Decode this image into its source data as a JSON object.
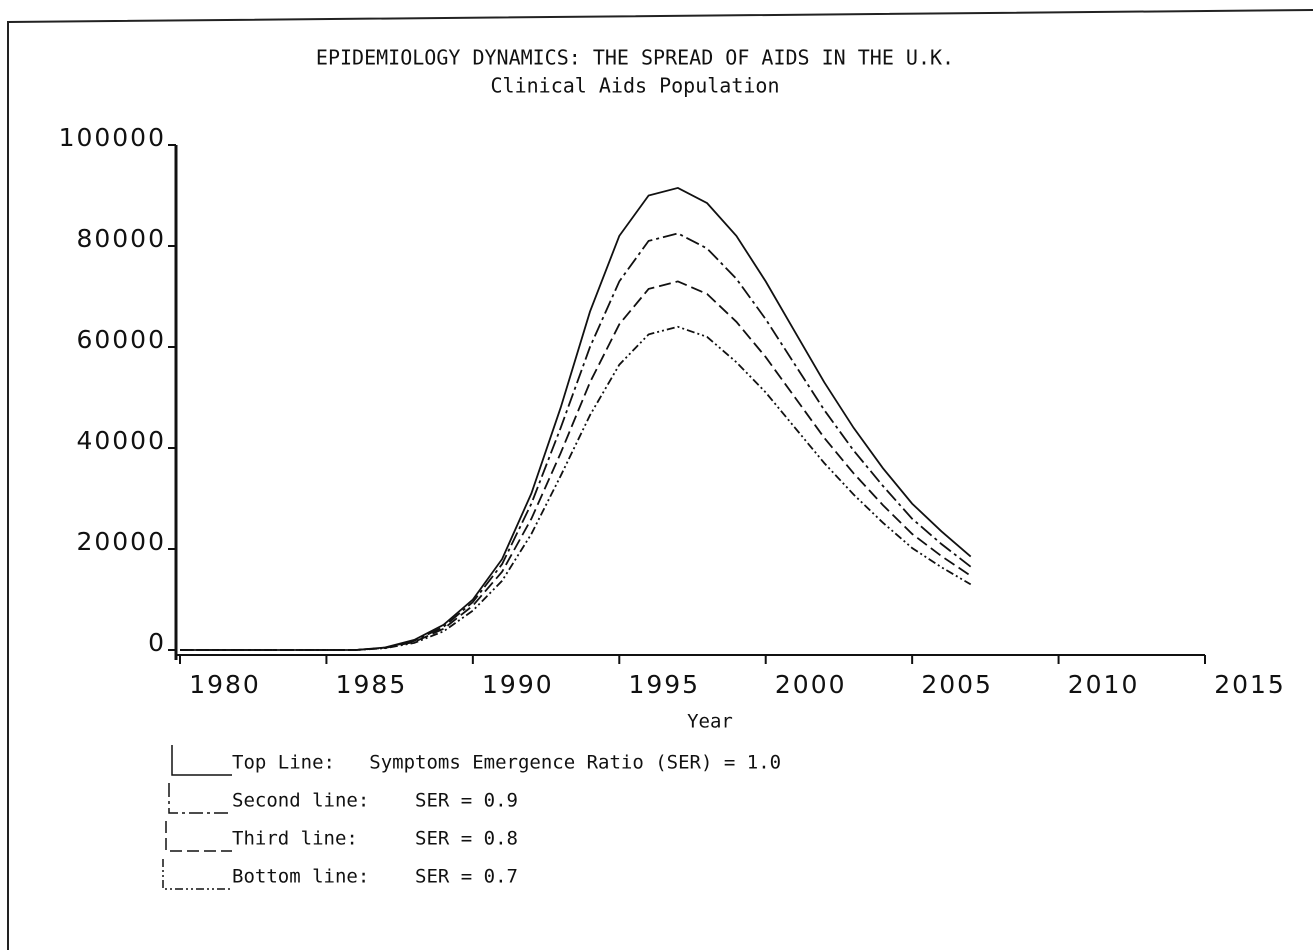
{
  "chart_data": {
    "type": "line",
    "title": "EPIDEMIOLOGY DYNAMICS: THE SPREAD OF AIDS IN THE U.K.",
    "subtitle": "Clinical Aids Population",
    "x_label": "Year",
    "x": [
      1980,
      1981,
      1982,
      1983,
      1984,
      1985,
      1986,
      1987,
      1988,
      1989,
      1990,
      1991,
      1992,
      1993,
      1994,
      1995,
      1996,
      1997,
      1998,
      1999,
      2000,
      2001,
      2002,
      2003,
      2004,
      2005,
      2006,
      2007
    ],
    "xlim": [
      1980,
      2015
    ],
    "xticks": [
      1980,
      1985,
      1990,
      1995,
      2000,
      2005,
      2010,
      2015
    ],
    "ylim": [
      0,
      100000
    ],
    "yticks": [
      0,
      20000,
      40000,
      60000,
      80000,
      100000
    ],
    "series": [
      {
        "name": "Top Line:   Symptoms Emergence Ratio (SER) = 1.0",
        "color": "#111111",
        "dash": "none",
        "values": [
          0,
          0,
          0,
          0,
          0,
          0,
          0,
          500,
          2000,
          5000,
          10000,
          18000,
          31000,
          48000,
          67000,
          82000,
          90000,
          91500,
          88500,
          82000,
          73000,
          63000,
          53000,
          44000,
          36000,
          29000,
          23500,
          18500
        ]
      },
      {
        "name": "Second line:    SER = 0.9",
        "color": "#111111",
        "dash": "14 4 3 4",
        "values": [
          0,
          0,
          0,
          0,
          0,
          0,
          0,
          450,
          1800,
          4600,
          9500,
          17000,
          29000,
          44000,
          60000,
          73000,
          81000,
          82500,
          79500,
          73500,
          65500,
          56500,
          47500,
          39500,
          32500,
          26000,
          21000,
          16500
        ]
      },
      {
        "name": "Third line:     SER = 0.8",
        "color": "#111111",
        "dash": "12 5",
        "values": [
          0,
          0,
          0,
          0,
          0,
          0,
          0,
          400,
          1600,
          4200,
          8800,
          15500,
          26000,
          39000,
          53000,
          64500,
          71500,
          73000,
          70500,
          65000,
          58000,
          50000,
          42000,
          35000,
          28700,
          23000,
          18600,
          14700
        ]
      },
      {
        "name": "Bottom line:    SER = 0.7",
        "color": "#111111",
        "dash": "8 3 2 3 2 3",
        "values": [
          0,
          0,
          0,
          0,
          0,
          0,
          0,
          350,
          1400,
          3700,
          7800,
          13700,
          23000,
          34500,
          46500,
          56500,
          62500,
          64000,
          62000,
          57000,
          51000,
          44000,
          37000,
          30800,
          25200,
          20200,
          16400,
          13000
        ]
      }
    ]
  }
}
